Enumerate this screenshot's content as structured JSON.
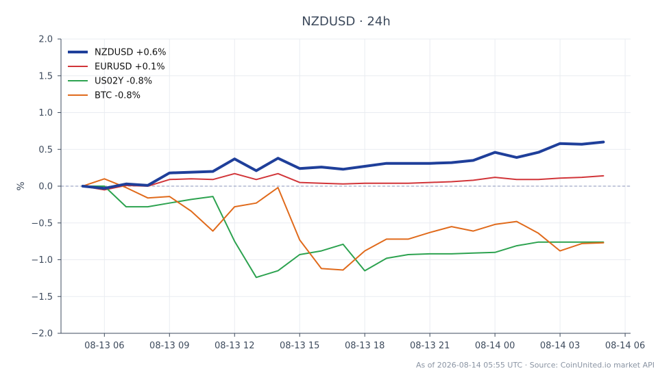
{
  "chart_data": {
    "type": "line",
    "title": "NZDUSD · 24h",
    "xlabel": "",
    "ylabel": "%",
    "x_ticks": [
      "08-13 06",
      "08-13 09",
      "08-13 12",
      "08-13 15",
      "08-13 18",
      "08-13 21",
      "08-14 00",
      "08-14 03",
      "08-14 06"
    ],
    "x_range": [
      "2026-08-13 04:00",
      "2026-08-14 06:15"
    ],
    "x": [
      "2026-08-13 05:00",
      "2026-08-13 06:00",
      "2026-08-13 07:00",
      "2026-08-13 08:00",
      "2026-08-13 09:00",
      "2026-08-13 10:00",
      "2026-08-13 11:00",
      "2026-08-13 12:00",
      "2026-08-13 13:00",
      "2026-08-13 14:00",
      "2026-08-13 15:00",
      "2026-08-13 16:00",
      "2026-08-13 17:00",
      "2026-08-13 18:00",
      "2026-08-13 19:00",
      "2026-08-13 20:00",
      "2026-08-13 21:00",
      "2026-08-13 22:00",
      "2026-08-13 23:00",
      "2026-08-14 00:00",
      "2026-08-14 01:00",
      "2026-08-14 02:00",
      "2026-08-14 03:00",
      "2026-08-14 04:00",
      "2026-08-14 05:00"
    ],
    "ylim": [
      -2.0,
      2.0
    ],
    "y_ticks": [
      "2.0",
      "1.5",
      "1.0",
      "0.5",
      "0.0",
      "−0.5",
      "−1.0",
      "−1.5",
      "−2.0"
    ],
    "y_tick_values": [
      2.0,
      1.5,
      1.0,
      0.5,
      0.0,
      -0.5,
      -1.0,
      -1.5,
      -2.0
    ],
    "baseline": 0,
    "grid": true,
    "legend_position": "top-left",
    "series": [
      {
        "name": "NZDUSD +0.6%",
        "color": "#1f3f9a",
        "emphasis": true,
        "values": [
          0.0,
          -0.03,
          0.03,
          0.01,
          0.18,
          0.19,
          0.2,
          0.37,
          0.21,
          0.38,
          0.24,
          0.26,
          0.23,
          0.27,
          0.31,
          0.31,
          0.31,
          0.32,
          0.35,
          0.46,
          0.39,
          0.46,
          0.58,
          0.57,
          0.6
        ]
      },
      {
        "name": "EURUSD +0.1%",
        "color": "#d13438",
        "values": [
          0.0,
          -0.05,
          0.01,
          0.0,
          0.09,
          0.1,
          0.09,
          0.17,
          0.09,
          0.17,
          0.05,
          0.04,
          0.03,
          0.04,
          0.04,
          0.04,
          0.05,
          0.06,
          0.08,
          0.12,
          0.09,
          0.09,
          0.11,
          0.12,
          0.14
        ]
      },
      {
        "name": "US02Y -0.8%",
        "color": "#2ca24f",
        "values": [
          0.0,
          0.0,
          -0.28,
          -0.28,
          -0.23,
          -0.18,
          -0.14,
          -0.75,
          -1.24,
          -1.15,
          -0.93,
          -0.88,
          -0.79,
          -1.15,
          -0.98,
          -0.93,
          -0.92,
          -0.92,
          -0.91,
          -0.9,
          -0.81,
          -0.76,
          -0.76,
          -0.76,
          -0.76
        ]
      },
      {
        "name": "BTC -0.8%",
        "color": "#e06a1b",
        "values": [
          0.0,
          0.1,
          -0.02,
          -0.16,
          -0.14,
          -0.34,
          -0.61,
          -0.28,
          -0.23,
          -0.02,
          -0.73,
          -1.12,
          -1.14,
          -0.88,
          -0.72,
          -0.72,
          -0.63,
          -0.55,
          -0.61,
          -0.52,
          -0.48,
          -0.64,
          -0.88,
          -0.78,
          -0.77
        ]
      }
    ],
    "footer": "As of 2026-08-14 05:55 UTC · Source: CoinUnited.io market API"
  }
}
